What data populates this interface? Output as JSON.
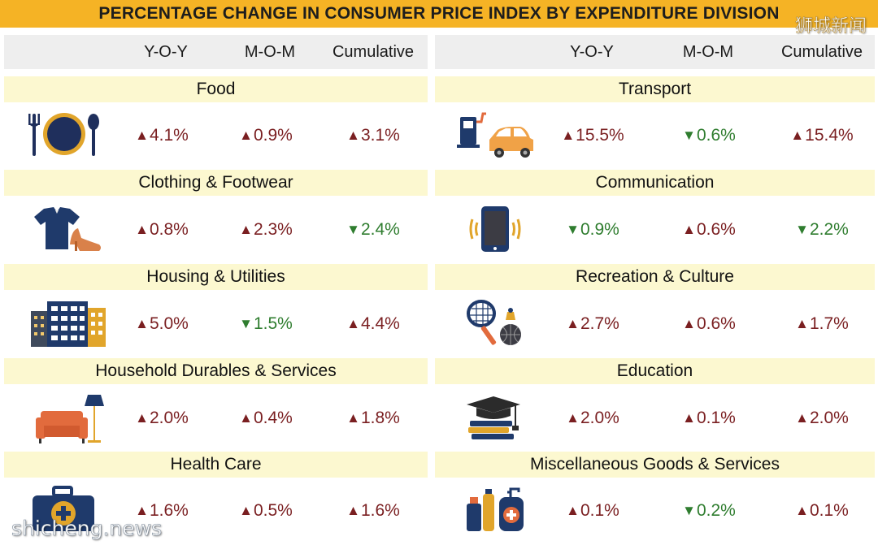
{
  "title": "PERCENTAGE CHANGE IN CONSUMER PRICE INDEX BY EXPENDITURE DIVISION",
  "watermark_top": "狮城新闻",
  "watermark_bottom": "shicheng.news",
  "headers": {
    "yoy": "Y-O-Y",
    "mom": "M-O-M",
    "cumulative": "Cumulative"
  },
  "colors": {
    "title_bar": "#f5b325",
    "increase": "#7a1f21",
    "decrease": "#2f7d2f",
    "header_bg": "#eeeeee",
    "category_bg": "#fcf8d0"
  },
  "left": [
    {
      "name": "Food",
      "icon": "plate-cutlery-icon",
      "yoy": {
        "dir": "up",
        "value": "4.1%"
      },
      "mom": {
        "dir": "up",
        "value": "0.9%"
      },
      "cumulative": {
        "dir": "up",
        "value": "3.1%"
      }
    },
    {
      "name": "Clothing & Footwear",
      "icon": "shirt-heels-icon",
      "yoy": {
        "dir": "up",
        "value": "0.8%"
      },
      "mom": {
        "dir": "up",
        "value": "2.3%"
      },
      "cumulative": {
        "dir": "down",
        "value": "2.4%"
      }
    },
    {
      "name": "Housing & Utilities",
      "icon": "buildings-icon",
      "yoy": {
        "dir": "up",
        "value": "5.0%"
      },
      "mom": {
        "dir": "down",
        "value": "1.5%"
      },
      "cumulative": {
        "dir": "up",
        "value": "4.4%"
      }
    },
    {
      "name": "Household Durables & Services",
      "icon": "sofa-lamp-icon",
      "yoy": {
        "dir": "up",
        "value": "2.0%"
      },
      "mom": {
        "dir": "up",
        "value": "0.4%"
      },
      "cumulative": {
        "dir": "up",
        "value": "1.8%"
      }
    },
    {
      "name": "Health Care",
      "icon": "medical-kit-icon",
      "yoy": {
        "dir": "up",
        "value": "1.6%"
      },
      "mom": {
        "dir": "up",
        "value": "0.5%"
      },
      "cumulative": {
        "dir": "up",
        "value": "1.6%"
      }
    }
  ],
  "right": [
    {
      "name": "Transport",
      "icon": "fuel-pump-car-icon",
      "yoy": {
        "dir": "up",
        "value": "15.5%"
      },
      "mom": {
        "dir": "down",
        "value": "0.6%"
      },
      "cumulative": {
        "dir": "up",
        "value": "15.4%"
      }
    },
    {
      "name": "Communication",
      "icon": "smartphone-icon",
      "yoy": {
        "dir": "down",
        "value": "0.9%"
      },
      "mom": {
        "dir": "up",
        "value": "0.6%"
      },
      "cumulative": {
        "dir": "down",
        "value": "2.2%"
      }
    },
    {
      "name": "Recreation & Culture",
      "icon": "racket-balls-icon",
      "yoy": {
        "dir": "up",
        "value": "2.7%"
      },
      "mom": {
        "dir": "up",
        "value": "0.6%"
      },
      "cumulative": {
        "dir": "up",
        "value": "1.7%"
      }
    },
    {
      "name": "Education",
      "icon": "graduation-cap-books-icon",
      "yoy": {
        "dir": "up",
        "value": "2.0%"
      },
      "mom": {
        "dir": "up",
        "value": "0.1%"
      },
      "cumulative": {
        "dir": "up",
        "value": "2.0%"
      }
    },
    {
      "name": "Miscellaneous Goods & Services",
      "icon": "toiletries-icon",
      "yoy": {
        "dir": "up",
        "value": "0.1%"
      },
      "mom": {
        "dir": "down",
        "value": "0.2%"
      },
      "cumulative": {
        "dir": "up",
        "value": "0.1%"
      }
    }
  ]
}
